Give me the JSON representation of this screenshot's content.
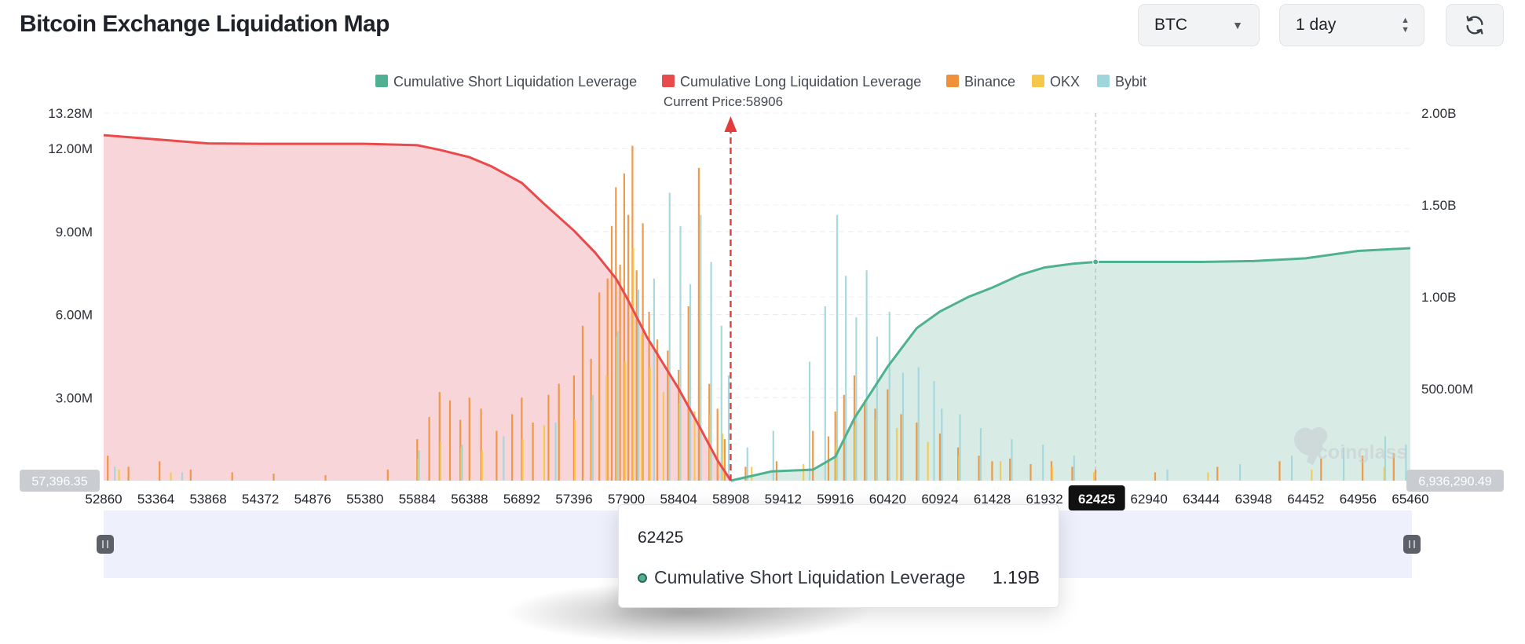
{
  "header": {
    "title": "Bitcoin Exchange Liquidation Map",
    "coin_select": "BTC",
    "period_select": "1 day",
    "refresh_icon": "refresh-icon"
  },
  "tooltip": {
    "title": "62425",
    "series": "Cumulative Short Liquidation Leverage",
    "value": "1.19B"
  },
  "chart_data": {
    "type": "bar",
    "title": "",
    "current_price_label": "Current Price:58906",
    "current_price": 58906,
    "highlighted_x": 62425,
    "x_ticks": [
      "52860",
      "53364",
      "53868",
      "54372",
      "54876",
      "55380",
      "55884",
      "56388",
      "56892",
      "57396",
      "57900",
      "58404",
      "58908",
      "59412",
      "59916",
      "60420",
      "60924",
      "61428",
      "61932",
      "62425",
      "62940",
      "63444",
      "63948",
      "64452",
      "64956",
      "65460"
    ],
    "xlim": [
      52860,
      65460
    ],
    "y_left": {
      "ticks": [
        "3.00M",
        "6.00M",
        "9.00M",
        "12.00M",
        "13.28M"
      ],
      "values": [
        3000000,
        6000000,
        9000000,
        12000000,
        13280000
      ],
      "ylim": [
        0,
        13280000
      ]
    },
    "y_right": {
      "ticks": [
        "500.00M",
        "1.00B",
        "1.50B",
        "2.00B"
      ],
      "values": [
        500000000,
        1000000000,
        1500000000,
        2000000000
      ],
      "ylim": [
        0,
        2000000000
      ]
    },
    "left_badge": "57,396.35",
    "right_badge": "6,936,290.49",
    "watermark": "coinglass",
    "legend_position": "top",
    "legend": [
      {
        "name": "Cumulative Short Liquidation Leverage",
        "color": "#4fb191"
      },
      {
        "name": "Cumulative Long Liquidation Leverage",
        "color": "#e84b4b"
      },
      {
        "name": "Binance",
        "color": "#f0913a"
      },
      {
        "name": "OKX",
        "color": "#f5c84c"
      },
      {
        "name": "Bybit",
        "color": "#9fd6dc"
      }
    ],
    "cumulative_long": {
      "axis": "right",
      "x": [
        52860,
        53300,
        53868,
        54372,
        55380,
        55884,
        56100,
        56388,
        56600,
        56892,
        57100,
        57396,
        57600,
        57800,
        57900,
        58100,
        58404,
        58600,
        58780,
        58908
      ],
      "values": [
        1880000000,
        1860000000,
        1835000000,
        1833000000,
        1833000000,
        1825000000,
        1800000000,
        1760000000,
        1710000000,
        1620000000,
        1510000000,
        1360000000,
        1240000000,
        1100000000,
        1000000000,
        780000000,
        500000000,
        300000000,
        110000000,
        0
      ]
    },
    "cumulative_short": {
      "axis": "right",
      "x": [
        58908,
        59300,
        59700,
        59916,
        60100,
        60420,
        60700,
        60924,
        61200,
        61428,
        61700,
        61932,
        62200,
        62425,
        62940,
        63444,
        63948,
        64452,
        64956,
        65460
      ],
      "values": [
        0,
        50000000,
        60000000,
        130000000,
        340000000,
        620000000,
        830000000,
        920000000,
        1000000000,
        1050000000,
        1120000000,
        1160000000,
        1180000000,
        1190000000,
        1190000000,
        1190000000,
        1195000000,
        1210000000,
        1250000000,
        1265000000
      ]
    },
    "series": [
      {
        "name": "Binance",
        "axis": "left",
        "x": [
          52900,
          53100,
          53400,
          53700,
          54100,
          54500,
          55000,
          55600,
          55884,
          56000,
          56100,
          56200,
          56300,
          56388,
          56500,
          56650,
          56800,
          56892,
          57000,
          57150,
          57250,
          57396,
          57480,
          57560,
          57640,
          57720,
          57760,
          57800,
          57840,
          57880,
          57920,
          57960,
          58000,
          58060,
          58120,
          58200,
          58300,
          58404,
          58500,
          58600,
          58700,
          58780,
          58850,
          59050,
          59350,
          59700,
          59850,
          59916,
          60000,
          60100,
          60200,
          60300,
          60420,
          60550,
          60700,
          60924,
          61100,
          61300,
          61428,
          61600,
          61800,
          62000,
          62200,
          62425,
          63000,
          63600,
          64200,
          64600,
          65000,
          65300
        ],
        "values": [
          900000,
          500000,
          700000,
          400000,
          300000,
          250000,
          200000,
          400000,
          1500000,
          2300000,
          3200000,
          2900000,
          2200000,
          3000000,
          2600000,
          1800000,
          2400000,
          3000000,
          2100000,
          3100000,
          3500000,
          3800000,
          5600000,
          4400000,
          6800000,
          7300000,
          9200000,
          10600000,
          7800000,
          11100000,
          9600000,
          12100000,
          7600000,
          9300000,
          6100000,
          5100000,
          4700000,
          4000000,
          6300000,
          11300000,
          3500000,
          2600000,
          1500000,
          500000,
          700000,
          1800000,
          1600000,
          2500000,
          3100000,
          3800000,
          2900000,
          2600000,
          3300000,
          2400000,
          2100000,
          1700000,
          1200000,
          900000,
          700000,
          800000,
          600000,
          700000,
          500000,
          400000,
          300000,
          500000,
          700000,
          800000,
          900000,
          1000000
        ]
      },
      {
        "name": "OKX",
        "axis": "left",
        "x": [
          53000,
          53500,
          55884,
          56100,
          56300,
          56500,
          56892,
          57100,
          57396,
          57560,
          57700,
          57800,
          57880,
          57960,
          58040,
          58120,
          58250,
          58404,
          58550,
          58700,
          58820,
          59100,
          59600,
          59916,
          60100,
          60300,
          60500,
          60800,
          61100,
          61500,
          62000,
          62400,
          63500,
          64500,
          65200
        ],
        "values": [
          400000,
          300000,
          800000,
          1400000,
          1200000,
          1100000,
          1500000,
          2000000,
          2200000,
          2900000,
          3800000,
          5200000,
          4300000,
          8400000,
          5300000,
          4100000,
          3200000,
          2800000,
          2500000,
          2400000,
          1700000,
          500000,
          600000,
          1300000,
          2000000,
          2200000,
          1900000,
          1400000,
          900000,
          700000,
          500000,
          300000,
          300000,
          400000,
          500000
        ]
      },
      {
        "name": "Bybit",
        "axis": "left",
        "x": [
          52950,
          53600,
          55884,
          56300,
          56700,
          57200,
          57560,
          57800,
          58000,
          58150,
          58300,
          58404,
          58500,
          58600,
          58700,
          58800,
          58870,
          59050,
          59300,
          59650,
          59800,
          59916,
          60000,
          60100,
          60200,
          60300,
          60420,
          60550,
          60700,
          60850,
          60924,
          61100,
          61300,
          61600,
          61900,
          62200,
          63100,
          63800,
          64300,
          64800,
          65200,
          65400
        ],
        "values": [
          500000,
          300000,
          1100000,
          1300000,
          1600000,
          2100000,
          3100000,
          5400000,
          6900000,
          7300000,
          10400000,
          9200000,
          7100000,
          9600000,
          7900000,
          5600000,
          3800000,
          1200000,
          1800000,
          4300000,
          6300000,
          9600000,
          7400000,
          5900000,
          7600000,
          5200000,
          6100000,
          3900000,
          4100000,
          3600000,
          2600000,
          2400000,
          1900000,
          1500000,
          1300000,
          900000,
          400000,
          600000,
          900000,
          1200000,
          1600000,
          1300000
        ]
      }
    ]
  }
}
